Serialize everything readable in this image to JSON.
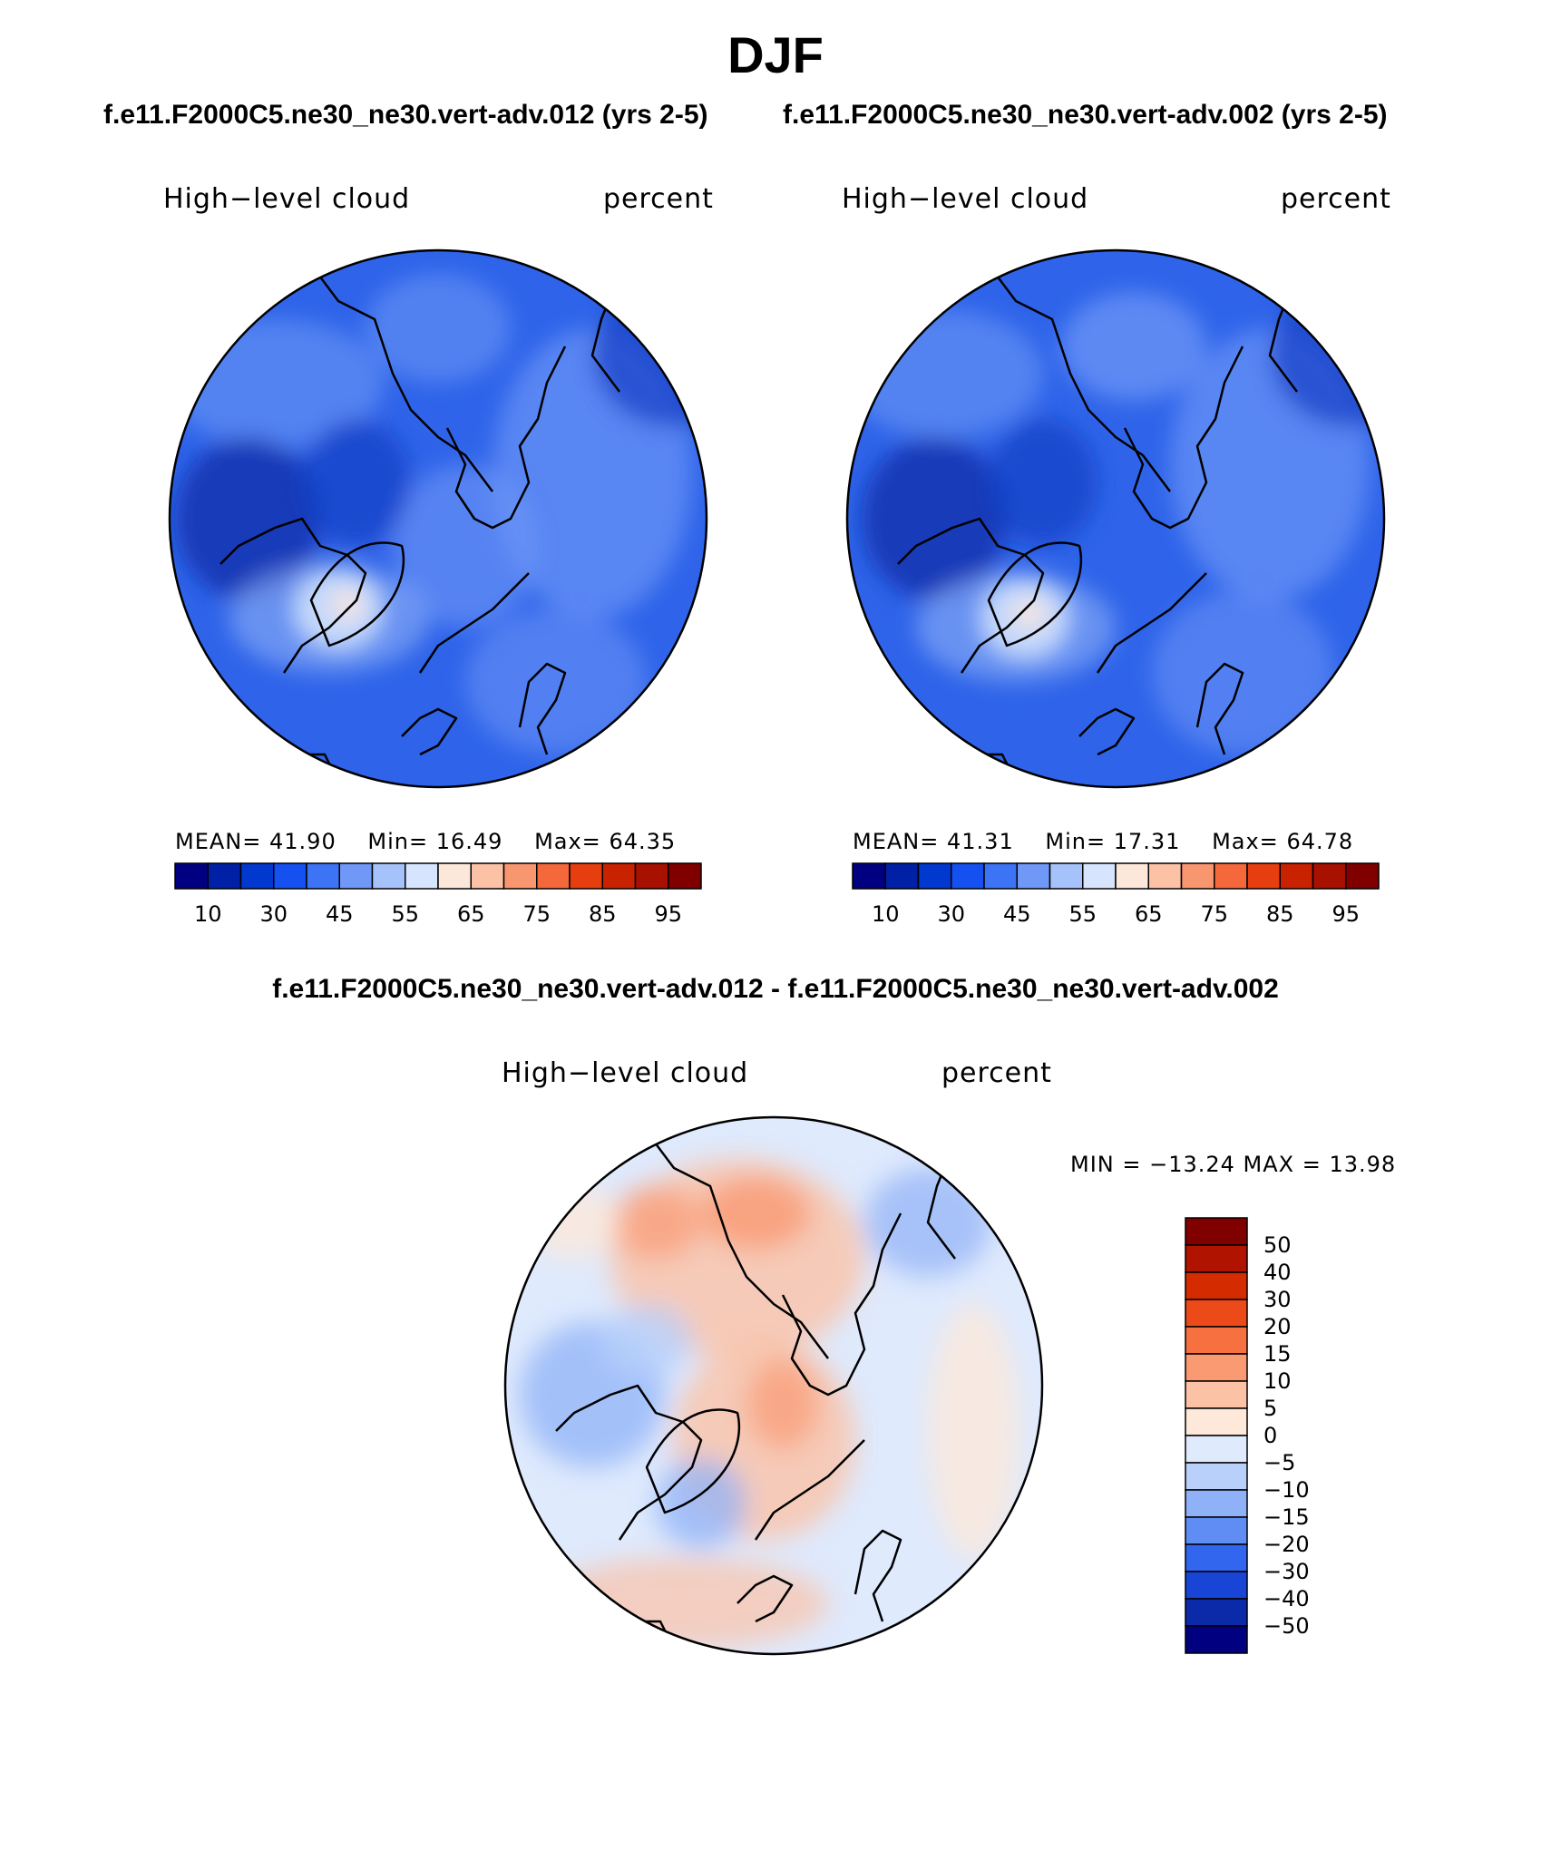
{
  "header": {
    "season": "DJF",
    "run1_title": "f.e11.F2000C5.ne30_ne30.vert-adv.012 (yrs 2-5)",
    "run2_title": "f.e11.F2000C5.ne30_ne30.vert-adv.002 (yrs 2-5)",
    "diff_title": "f.e11.F2000C5.ne30_ne30.vert-adv.012 - f.e11.F2000C5.ne30_ne30.vert-adv.002"
  },
  "panels": {
    "p1": {
      "variable": "High−level cloud",
      "units": "percent",
      "mean_label": "MEAN=",
      "mean": "41.90",
      "min_label": "Min=",
      "min": "16.49",
      "max_label": "Max=",
      "max": "64.35"
    },
    "p2": {
      "variable": "High−level cloud",
      "units": "percent",
      "mean_label": "MEAN=",
      "mean": "41.31",
      "min_label": "Min=",
      "min": "17.31",
      "max_label": "Max=",
      "max": "64.78"
    },
    "diff": {
      "variable": "High−level cloud",
      "units": "percent",
      "minmax": "MIN = −13.24 MAX =   13.98"
    }
  },
  "chart_data": [
    {
      "type": "heatmap",
      "title": "High−level cloud",
      "units": "percent",
      "projection": "north polar stereographic",
      "mean": 41.9,
      "min": 16.49,
      "max": 64.35,
      "colorbar": {
        "orientation": "horizontal",
        "tick_labels": [
          "10",
          "30",
          "45",
          "55",
          "65",
          "75",
          "85",
          "95"
        ],
        "colors": [
          "#000080",
          "#0021a6",
          "#0038d0",
          "#1451f0",
          "#3d73f5",
          "#6f98f7",
          "#a6c2fa",
          "#d6e5fd",
          "#fde7da",
          "#fbc2a6",
          "#f89670",
          "#f4683c",
          "#e73e10",
          "#c92200",
          "#a81000",
          "#800000"
        ]
      }
    },
    {
      "type": "heatmap",
      "title": "High−level cloud",
      "units": "percent",
      "projection": "north polar stereographic",
      "mean": 41.31,
      "min": 17.31,
      "max": 64.78,
      "colorbar": {
        "orientation": "horizontal",
        "tick_labels": [
          "10",
          "30",
          "45",
          "55",
          "65",
          "75",
          "85",
          "95"
        ],
        "colors": [
          "#000080",
          "#0021a6",
          "#0038d0",
          "#1451f0",
          "#3d73f5",
          "#6f98f7",
          "#a6c2fa",
          "#d6e5fd",
          "#fde7da",
          "#fbc2a6",
          "#f89670",
          "#f4683c",
          "#e73e10",
          "#c92200",
          "#a81000",
          "#800000"
        ]
      }
    },
    {
      "type": "heatmap",
      "title": "High−level cloud",
      "units": "percent",
      "projection": "north polar stereographic",
      "min": -13.24,
      "max": 13.98,
      "colorbar": {
        "orientation": "vertical",
        "tick_labels": [
          "50",
          "40",
          "30",
          "20",
          "15",
          "10",
          "5",
          "0",
          "−5",
          "−10",
          "−15",
          "−20",
          "−30",
          "−40",
          "−50"
        ],
        "colors": [
          "#800000",
          "#b01400",
          "#d42c00",
          "#ec4a18",
          "#f6713f",
          "#f99a73",
          "#fbc2a6",
          "#fde8da",
          "#dfeafd",
          "#b8d0fa",
          "#8fb1f7",
          "#5f8df3",
          "#3266ee",
          "#1845d6",
          "#0a2aaa",
          "#000080"
        ]
      }
    }
  ]
}
